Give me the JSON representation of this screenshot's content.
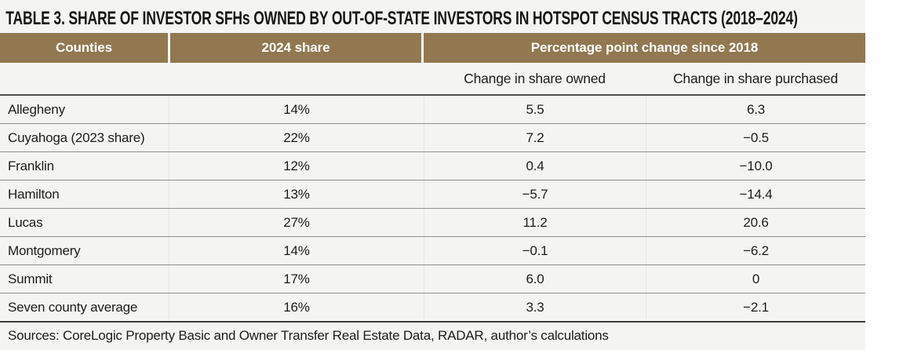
{
  "title": "TABLE 3. SHARE OF INVESTOR SFHs OWNED BY OUT-OF-STATE INVESTORS IN HOTSPOT CENSUS TRACTS (2018–2024)",
  "colors": {
    "header_bg": "#917851",
    "table_bg": "#f4f4f2",
    "header_text": "#ffffff",
    "body_text": "#1d1d1d",
    "row_divider": "#8f8f8f",
    "strong_divider": "#3d3d3d"
  },
  "table": {
    "header": {
      "counties": "Counties",
      "share_2024": "2024 share",
      "pp_change": "Percentage point change since 2018"
    },
    "subheader": {
      "owned": "Change in share owned",
      "purchased": "Change in share purchased"
    },
    "rows": [
      {
        "county": "Allegheny",
        "share": "14%",
        "owned": "5.5",
        "purchased": "6.3"
      },
      {
        "county": "Cuyahoga (2023 share)",
        "share": "22%",
        "owned": "7.2",
        "purchased": "−0.5"
      },
      {
        "county": "Franklin",
        "share": "12%",
        "owned": "0.4",
        "purchased": "−10.0"
      },
      {
        "county": "Hamilton",
        "share": "13%",
        "owned": "−5.7",
        "purchased": "−14.4"
      },
      {
        "county": "Lucas",
        "share": "27%",
        "owned": "11.2",
        "purchased": "20.6"
      },
      {
        "county": "Montgomery",
        "share": "14%",
        "owned": "−0.1",
        "purchased": "−6.2"
      },
      {
        "county": "Summit",
        "share": "17%",
        "owned": "6.0",
        "purchased": "0"
      },
      {
        "county": "Seven county average",
        "share": "16%",
        "owned": "3.3",
        "purchased": "−2.1"
      }
    ]
  },
  "footer": {
    "sources": "Sources: CoreLogic Property Basic and Owner Transfer Real Estate Data, RADAR, author’s calculations"
  }
}
